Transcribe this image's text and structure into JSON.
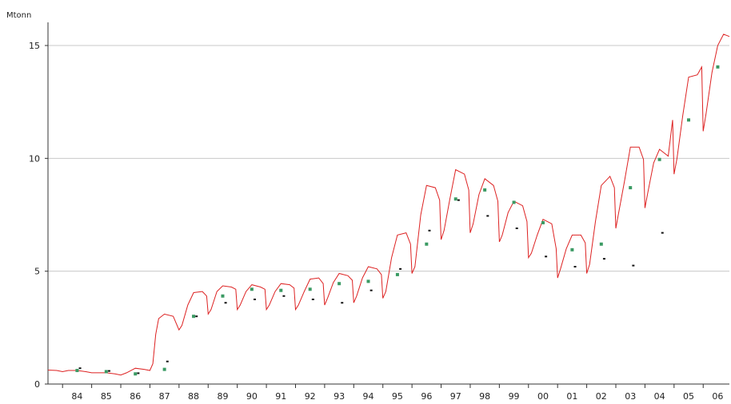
{
  "chart_data": {
    "type": "line",
    "ylabel": "Mtonn",
    "ylim": [
      0,
      16
    ],
    "xlim": [
      1983.5,
      2006.9
    ],
    "yticks": [
      0,
      5,
      10,
      15
    ],
    "grid": "horizontal",
    "x_tick_labels": [
      "84",
      "85",
      "86",
      "87",
      "88",
      "89",
      "90",
      "91",
      "92",
      "93",
      "94",
      "95",
      "96",
      "97",
      "98",
      "99",
      "00",
      "01",
      "02",
      "03",
      "04",
      "05",
      "06"
    ],
    "colors": {
      "line": "#dd2222",
      "green_marker": "#3a9a63",
      "black_marker": "#111111",
      "grid": "#c8c8c8",
      "axis": "#333333"
    },
    "series": [
      {
        "type": "line",
        "x": [
          1983.5,
          1983.8,
          1984.0,
          1984.2,
          1984.5,
          1984.8,
          1985.0,
          1985.2,
          1985.5,
          1985.8,
          1986.0,
          1986.2,
          1986.5,
          1986.8,
          1987.0,
          1987.1,
          1987.2,
          1987.3,
          1987.5,
          1987.8,
          1988.0,
          1988.1,
          1988.3,
          1988.5,
          1988.8,
          1988.95,
          1989.0,
          1989.1,
          1989.3,
          1989.5,
          1989.8,
          1989.95,
          1990.0,
          1990.1,
          1990.3,
          1990.5,
          1990.8,
          1990.95,
          1991.0,
          1991.1,
          1991.3,
          1991.5,
          1991.8,
          1991.95,
          1992.0,
          1992.1,
          1992.3,
          1992.5,
          1992.8,
          1992.95,
          1993.0,
          1993.1,
          1993.3,
          1993.5,
          1993.8,
          1993.95,
          1994.0,
          1994.1,
          1994.3,
          1994.5,
          1994.8,
          1994.95,
          1995.0,
          1995.1,
          1995.3,
          1995.5,
          1995.8,
          1995.95,
          1996.0,
          1996.1,
          1996.3,
          1996.5,
          1996.8,
          1996.95,
          1997.0,
          1997.1,
          1997.3,
          1997.5,
          1997.8,
          1997.95,
          1998.0,
          1998.1,
          1998.3,
          1998.5,
          1998.8,
          1998.95,
          1999.0,
          1999.1,
          1999.3,
          1999.5,
          1999.8,
          1999.95,
          2000.0,
          2000.1,
          2000.3,
          2000.5,
          2000.8,
          2000.95,
          2001.0,
          2001.1,
          2001.3,
          2001.5,
          2001.8,
          2001.95,
          2002.0,
          2002.1,
          2002.3,
          2002.5,
          2002.8,
          2002.95,
          2003.0,
          2003.1,
          2003.3,
          2003.5,
          2003.8,
          2003.95,
          2004.0,
          2004.1,
          2004.3,
          2004.5,
          2004.8,
          2004.95,
          2005.0,
          2005.1,
          2005.3,
          2005.5,
          2005.8,
          2005.95,
          2006.0,
          2006.1,
          2006.3,
          2006.5,
          2006.7,
          2006.9
        ],
        "y": [
          0.62,
          0.6,
          0.55,
          0.6,
          0.6,
          0.55,
          0.5,
          0.5,
          0.5,
          0.45,
          0.4,
          0.5,
          0.7,
          0.65,
          0.6,
          0.9,
          2.2,
          2.9,
          3.1,
          3.0,
          2.4,
          2.6,
          3.5,
          4.05,
          4.1,
          3.9,
          3.1,
          3.3,
          4.1,
          4.35,
          4.3,
          4.2,
          3.3,
          3.5,
          4.1,
          4.4,
          4.3,
          4.2,
          3.3,
          3.5,
          4.1,
          4.45,
          4.4,
          4.25,
          3.3,
          3.5,
          4.1,
          4.65,
          4.7,
          4.45,
          3.5,
          3.8,
          4.5,
          4.9,
          4.8,
          4.6,
          3.6,
          3.9,
          4.7,
          5.2,
          5.1,
          4.85,
          3.8,
          4.1,
          5.6,
          6.6,
          6.7,
          6.2,
          4.9,
          5.2,
          7.5,
          8.8,
          8.7,
          8.15,
          6.4,
          6.8,
          8.2,
          9.5,
          9.3,
          8.6,
          6.7,
          7.1,
          8.4,
          9.1,
          8.8,
          8.1,
          6.3,
          6.6,
          7.6,
          8.1,
          7.9,
          7.2,
          5.6,
          5.8,
          6.6,
          7.3,
          7.1,
          6.0,
          4.7,
          5.1,
          6.0,
          6.6,
          6.6,
          6.25,
          4.9,
          5.3,
          7.2,
          8.8,
          9.2,
          8.7,
          6.9,
          7.6,
          9.0,
          10.5,
          10.5,
          9.95,
          7.8,
          8.5,
          9.8,
          10.4,
          10.1,
          11.7,
          9.3,
          10.0,
          11.9,
          13.6,
          13.7,
          14.05,
          11.2,
          12.0,
          13.8,
          15.0,
          15.5,
          15.4
        ]
      },
      {
        "type": "scatter",
        "marker": "green",
        "x": [
          1984.5,
          1985.5,
          1986.5,
          1987.5,
          1988.5,
          1989.5,
          1990.5,
          1991.5,
          1992.5,
          1993.5,
          1994.5,
          1995.5,
          1996.5,
          1997.5,
          1998.5,
          1999.5,
          2000.5,
          2001.5,
          2002.5,
          2003.5,
          2004.5,
          2005.5,
          2006.5
        ],
        "y": [
          0.6,
          0.55,
          0.45,
          0.65,
          3.0,
          3.9,
          4.2,
          4.15,
          4.2,
          4.45,
          4.55,
          4.85,
          6.2,
          8.2,
          8.6,
          8.05,
          7.15,
          5.95,
          6.2,
          8.7,
          9.95,
          11.7,
          14.05
        ]
      },
      {
        "type": "scatter",
        "marker": "black",
        "x": [
          1984.6,
          1985.6,
          1986.6,
          1987.6,
          1988.6,
          1989.6,
          1990.6,
          1991.6,
          1992.6,
          1993.6,
          1994.6,
          1995.6,
          1996.6,
          1997.6,
          1998.6,
          1999.6,
          2000.6,
          2001.6,
          2002.6,
          2003.6,
          2004.6
        ],
        "y": [
          0.7,
          0.58,
          0.48,
          1.0,
          3.0,
          3.6,
          3.75,
          3.9,
          3.75,
          3.6,
          4.15,
          5.1,
          6.8,
          8.15,
          7.45,
          6.9,
          5.65,
          5.2,
          5.55,
          5.25,
          6.7
        ]
      }
    ]
  }
}
